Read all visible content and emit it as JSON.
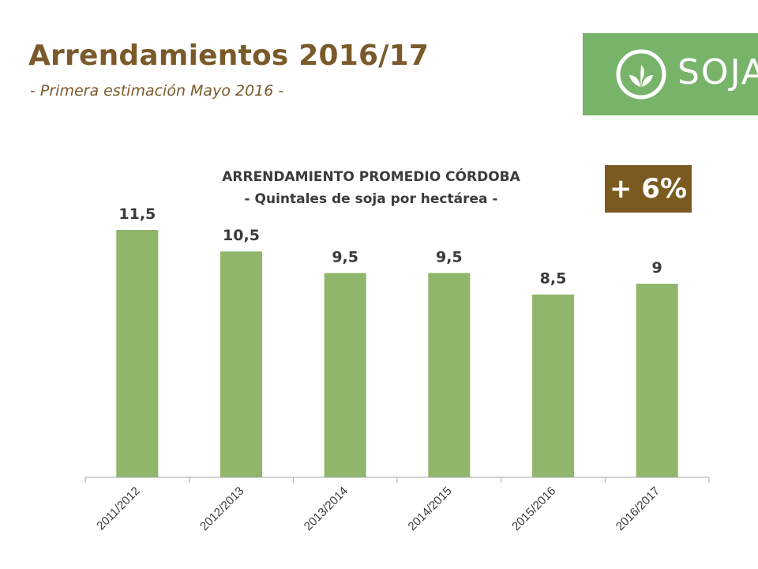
{
  "header": {
    "title": "Arrendamientos 2016/17",
    "subtitle": "- Primera estimación Mayo 2016 -"
  },
  "logo": {
    "text": "SOJA",
    "color": "#78b36a"
  },
  "badge": {
    "text": "+ 6%",
    "color": "#7a5a1f"
  },
  "chart_data": {
    "type": "bar",
    "title": "ARRENDAMIENTO PROMEDIO CÓRDOBA",
    "subtitle": "- Quintales de soja por hectárea -",
    "categories": [
      "2011/2012",
      "2012/2013",
      "2013/2014",
      "2014/2015",
      "2015/2016",
      "2016/2017"
    ],
    "values": [
      11.5,
      10.5,
      9.5,
      9.5,
      8.5,
      9
    ],
    "value_labels": [
      "11,5",
      "10,5",
      "9,5",
      "9,5",
      "8,5",
      "9"
    ],
    "xlabel": "",
    "ylabel": "",
    "ylim": [
      0,
      11.5
    ],
    "bar_color": "#8fb66a",
    "grid": false,
    "legend": "none"
  }
}
